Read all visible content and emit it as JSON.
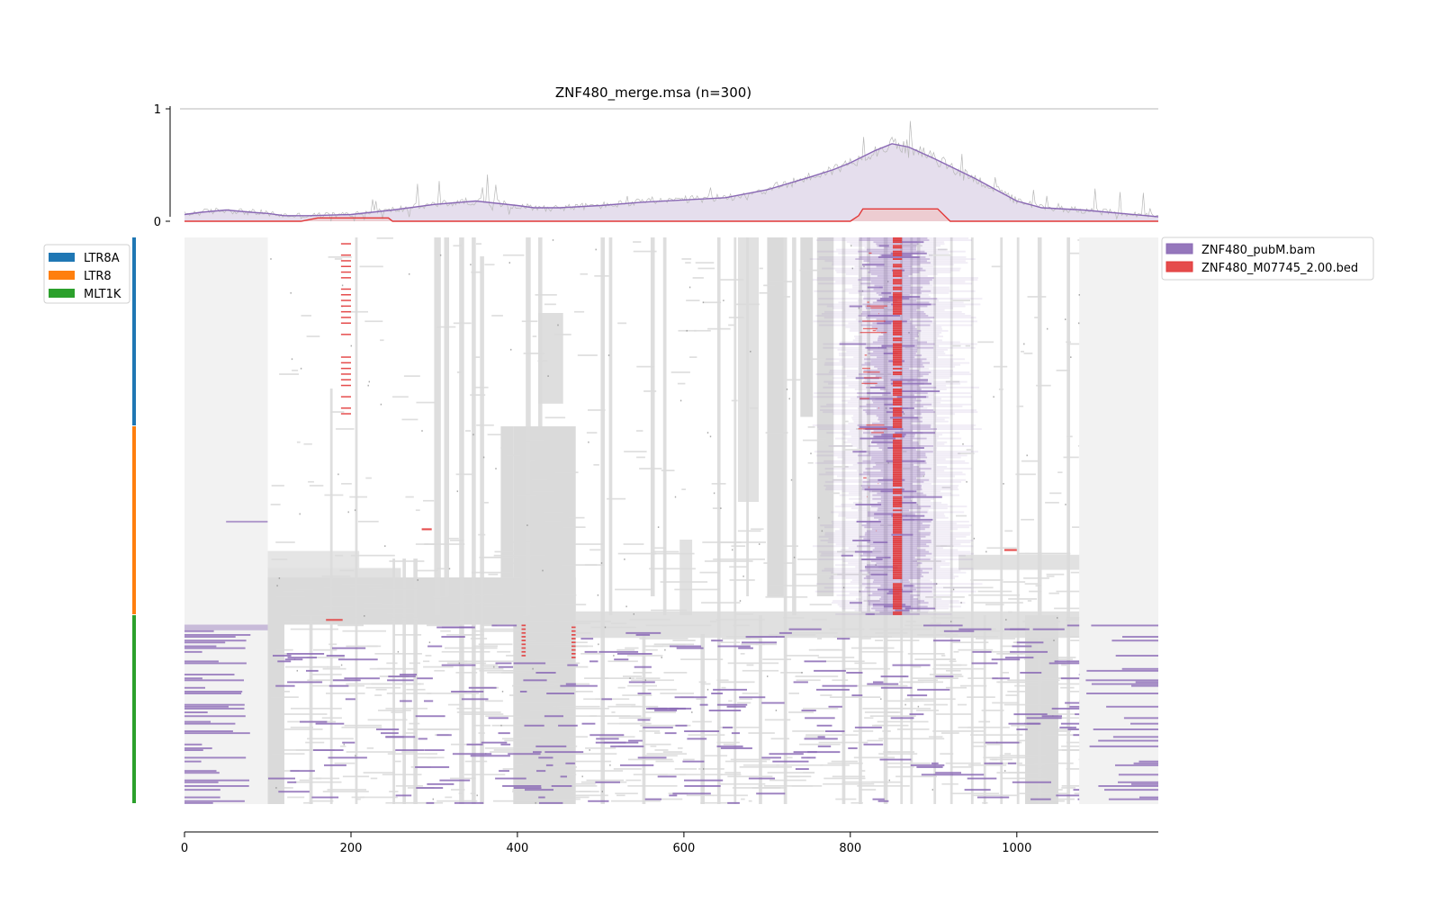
{
  "chart_data": {
    "type": "heatmap",
    "title": "ZNF480_merge.msa (n=300)",
    "profile": {
      "yticks": [
        0,
        1
      ],
      "ylim": [
        0,
        1
      ],
      "xlim": [
        0,
        1170
      ],
      "series": [
        {
          "name": "ZNF480_pubM.bam",
          "color": "#8a68b5",
          "fill": "#e1d8ea",
          "x": [
            0,
            20,
            50,
            80,
            100,
            120,
            150,
            200,
            250,
            300,
            350,
            400,
            420,
            450,
            500,
            550,
            600,
            650,
            700,
            750,
            780,
            800,
            830,
            850,
            870,
            900,
            950,
            1000,
            1030,
            1080,
            1170
          ],
          "y": [
            0.06,
            0.08,
            0.1,
            0.08,
            0.07,
            0.05,
            0.05,
            0.06,
            0.1,
            0.15,
            0.18,
            0.14,
            0.12,
            0.12,
            0.14,
            0.17,
            0.19,
            0.21,
            0.28,
            0.39,
            0.46,
            0.52,
            0.63,
            0.69,
            0.66,
            0.56,
            0.38,
            0.18,
            0.12,
            0.1,
            0.04
          ]
        },
        {
          "name": "ZNF480_M07745_2.00.bed",
          "color": "#e23838",
          "fill": "#f1c4c4",
          "x": [
            0,
            140,
            160,
            210,
            245,
            250,
            800,
            810,
            815,
            905,
            920,
            1170
          ],
          "y": [
            0,
            0,
            0.03,
            0.03,
            0.03,
            0,
            0,
            0.05,
            0.11,
            0.11,
            0,
            0
          ]
        }
      ]
    },
    "heatmap": {
      "rows": 300,
      "columns": 1170,
      "groups": [
        {
          "name": "LTR8A",
          "color": "#1f77b4",
          "row_range": [
            0,
            100
          ]
        },
        {
          "name": "LTR8",
          "color": "#ff7f0e",
          "row_range": [
            100,
            200
          ]
        },
        {
          "name": "MLT1K",
          "color": "#2ca02c",
          "row_range": [
            200,
            300
          ]
        }
      ],
      "legend_position": "right",
      "colors": {
        "gap": "#dadada",
        "outside": "#f2f2f2",
        "signal": "#8a68b5",
        "motif": "#e23838"
      }
    },
    "xaxis": {
      "ticks": [
        0,
        200,
        400,
        600,
        800,
        1000
      ],
      "range": [
        0,
        1170
      ]
    }
  }
}
